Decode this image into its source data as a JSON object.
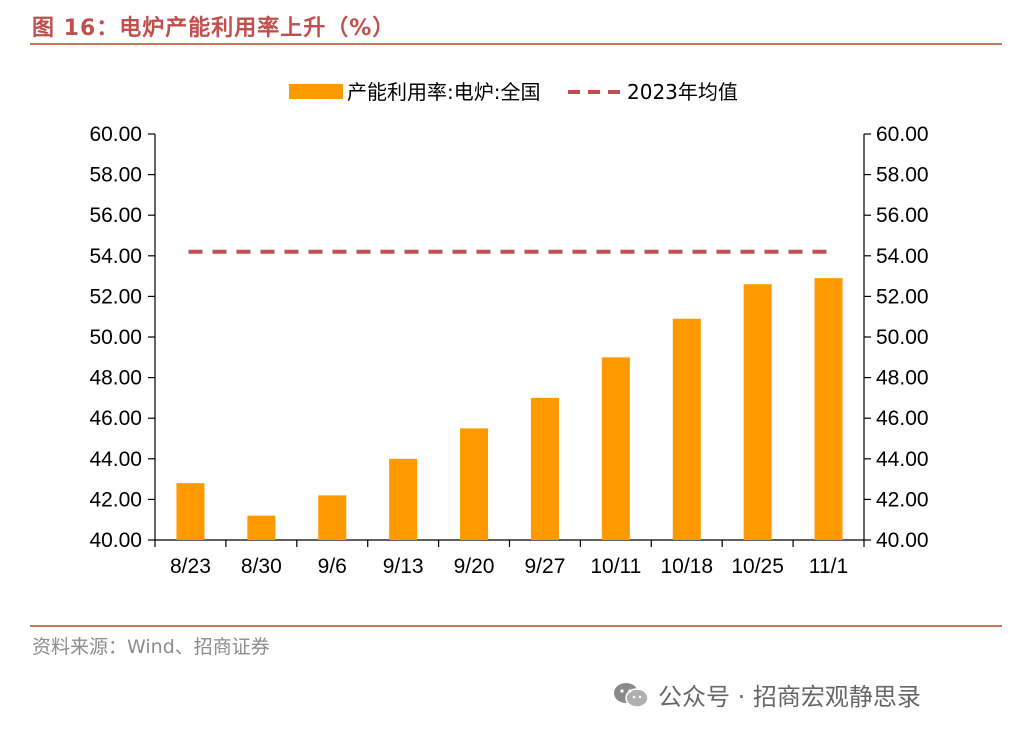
{
  "header": {
    "title": "图 16：电炉产能利用率上升（%）"
  },
  "footer": {
    "source": "资料来源：Wind、招商证券",
    "watermark": "公众号 · 招商宏观静思录"
  },
  "colors": {
    "bar": "#ff9900",
    "avg_line": "#c0504d",
    "accent": "#c0504d"
  },
  "chart_data": {
    "type": "bar",
    "title": "",
    "xlabel": "",
    "ylabel": "",
    "categories": [
      "8/23",
      "8/30",
      "9/6",
      "9/13",
      "9/20",
      "9/27",
      "10/11",
      "10/18",
      "10/25",
      "11/1"
    ],
    "series": [
      {
        "name": "产能利用率:电炉:全国",
        "type": "bar",
        "values": [
          42.8,
          41.2,
          42.2,
          44.0,
          45.5,
          47.0,
          49.0,
          50.9,
          52.6,
          52.9
        ]
      },
      {
        "name": "2023年均值",
        "type": "dashed-line",
        "value": 54.2
      }
    ],
    "ylim": [
      40,
      60
    ],
    "yticks": [
      "40.00",
      "42.00",
      "44.00",
      "46.00",
      "48.00",
      "50.00",
      "52.00",
      "54.00",
      "56.00",
      "58.00",
      "60.00"
    ],
    "y2ticks": [
      "40.00",
      "42.00",
      "44.00",
      "46.00",
      "48.00",
      "50.00",
      "52.00",
      "54.00",
      "56.00",
      "58.00",
      "60.00"
    ],
    "grid": false,
    "legend": "top-center"
  }
}
